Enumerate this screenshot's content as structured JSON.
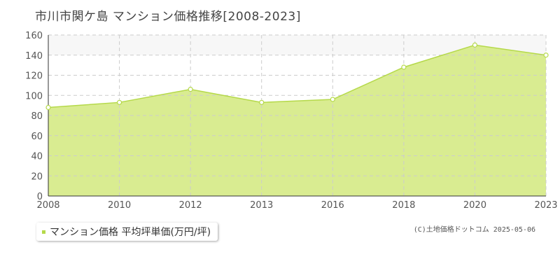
{
  "title": "市川市関ケ島 マンション価格推移[2008-2023]",
  "legend": {
    "label": "マンション価格 平均坪単価(万円/坪)"
  },
  "credit": "(C)土地価格ドットコム 2025-05-06",
  "colors": {
    "fill": "#d9ec91",
    "line": "#b5d94a",
    "band": "#f7f7f7",
    "grid": "#cccccc"
  },
  "chart_data": {
    "type": "area",
    "title": "市川市関ケ島 マンション価格推移[2008-2023]",
    "xlabel": "",
    "ylabel": "",
    "categories": [
      "2008",
      "2010",
      "2012",
      "2013",
      "2016",
      "2018",
      "2020",
      "2023"
    ],
    "series": [
      {
        "name": "マンション価格 平均坪単価(万円/坪)",
        "values": [
          88,
          93,
          106,
          93,
          96,
          128,
          150,
          140
        ]
      }
    ],
    "yticks": [
      "0",
      "20",
      "40",
      "60",
      "80",
      "100",
      "120",
      "140",
      "160"
    ],
    "ylim": [
      0,
      160
    ],
    "grid": true
  }
}
